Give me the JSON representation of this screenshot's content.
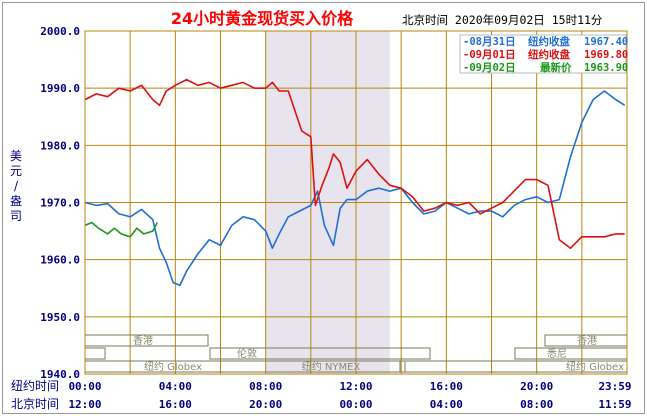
{
  "header": {
    "title": "24小时黄金现货买入价格",
    "timestamp": "北京时间  2020年09月02日 15时11分"
  },
  "ylabel": "美元/盎司",
  "markets": [
    "香港",
    "伦敦",
    "纽约 NYMEX",
    "纽约 Globex",
    "悉尼",
    "香港",
    "纽约 Globex"
  ],
  "time_rows": {
    "ny_label": "纽约时间",
    "bj_label": "北京时间",
    "ny_ticks": [
      "00:00",
      "04:00",
      "08:00",
      "12:00",
      "16:00",
      "20:00",
      "23:59"
    ],
    "bj_ticks": [
      "12:00",
      "16:00",
      "20:00",
      "00:00",
      "04:00",
      "08:00",
      "11:59"
    ]
  },
  "colors": {
    "title": "#ff0000",
    "axis_text": "#000080",
    "gold_grid": "#b8860b",
    "shade": "#e8e4ee",
    "market_bar": "#7a7a5a",
    "plot_bg": "#ffffff"
  },
  "chart_data": {
    "type": "line",
    "xlabel": "",
    "ylabel": "美元/盎司",
    "ylim": [
      1940,
      2000
    ],
    "yticks": [
      "2000.0",
      "1990.0",
      "1980.0",
      "1970.0",
      "1960.0",
      "1950.0",
      "1940.0"
    ],
    "x_hours_range": [
      0,
      24
    ],
    "shaded_session_hours": [
      8.0,
      13.5
    ],
    "series": [
      {
        "legend_date": "08月31日",
        "legend_label": "纽约收盘",
        "legend_value": "1967.40",
        "color": "#1e6fd9",
        "x": [
          0,
          0.5,
          1,
          1.5,
          2,
          2.5,
          3,
          3.3,
          3.6,
          3.9,
          4.2,
          4.5,
          5,
          5.5,
          6,
          6.5,
          7,
          7.5,
          8,
          8.3,
          8.6,
          9,
          9.5,
          10,
          10.3,
          10.6,
          11,
          11.3,
          11.6,
          12,
          12.5,
          13,
          13.5,
          14,
          14.5,
          15,
          15.5,
          16,
          16.5,
          17,
          17.5,
          18,
          18.5,
          19,
          19.5,
          20,
          20.5,
          21,
          21.5,
          22,
          22.5,
          23,
          23.5,
          23.9
        ],
        "values": [
          1970.0,
          1969.5,
          1969.8,
          1968.0,
          1967.5,
          1968.8,
          1967.0,
          1962.0,
          1959.5,
          1956.0,
          1955.5,
          1958.0,
          1961.0,
          1963.5,
          1962.5,
          1966.0,
          1967.5,
          1967.0,
          1965.0,
          1962.0,
          1964.5,
          1967.5,
          1968.5,
          1969.5,
          1972.0,
          1966.0,
          1962.5,
          1969.0,
          1970.5,
          1970.5,
          1972.0,
          1972.5,
          1972.0,
          1972.5,
          1970.0,
          1968.0,
          1968.5,
          1970.0,
          1969.0,
          1968.0,
          1968.5,
          1968.5,
          1967.5,
          1969.5,
          1970.5,
          1971.0,
          1970.0,
          1970.5,
          1978.0,
          1984.0,
          1988.0,
          1989.5,
          1988.0,
          1987.0
        ]
      },
      {
        "legend_date": "09月01日",
        "legend_label": "纽约收盘",
        "legend_value": "1969.80",
        "color": "#dd1111",
        "x": [
          0,
          0.5,
          1,
          1.5,
          2,
          2.5,
          3,
          3.3,
          3.6,
          4,
          4.5,
          5,
          5.5,
          6,
          6.5,
          7,
          7.5,
          8,
          8.3,
          8.6,
          9,
          9.3,
          9.6,
          10,
          10.2,
          10.5,
          10.8,
          11,
          11.3,
          11.6,
          12,
          12.5,
          13,
          13.5,
          14,
          14.5,
          15,
          15.5,
          16,
          16.5,
          17,
          17.5,
          18,
          18.5,
          19,
          19.5,
          20,
          20.5,
          21,
          21.5,
          22,
          22.5,
          23,
          23.5,
          23.9
        ],
        "values": [
          1988.0,
          1989.0,
          1988.5,
          1990.0,
          1989.5,
          1990.5,
          1988.0,
          1987.0,
          1989.5,
          1990.5,
          1991.5,
          1990.5,
          1991.0,
          1990.0,
          1990.5,
          1991.0,
          1990.0,
          1990.0,
          1991.0,
          1989.5,
          1989.5,
          1986.0,
          1982.5,
          1981.5,
          1969.5,
          1973.0,
          1976.0,
          1978.5,
          1977.0,
          1972.5,
          1975.5,
          1977.5,
          1975.0,
          1973.0,
          1972.5,
          1971.0,
          1968.5,
          1969.0,
          1970.0,
          1969.5,
          1970.0,
          1968.0,
          1969.0,
          1970.0,
          1972.0,
          1974.0,
          1974.0,
          1973.0,
          1963.5,
          1962.0,
          1964.0,
          1964.0,
          1964.0,
          1964.5,
          1964.5
        ]
      },
      {
        "legend_date": "09月02日",
        "legend_label": "最新价",
        "legend_value": "1963.90",
        "color": "#1a9a1a",
        "x": [
          0,
          0.3,
          0.6,
          1,
          1.3,
          1.6,
          2,
          2.3,
          2.6,
          3,
          3.2
        ],
        "values": [
          1966.0,
          1966.5,
          1965.5,
          1964.5,
          1965.5,
          1964.5,
          1964.0,
          1965.5,
          1964.5,
          1965.0,
          1966.5
        ]
      }
    ]
  }
}
